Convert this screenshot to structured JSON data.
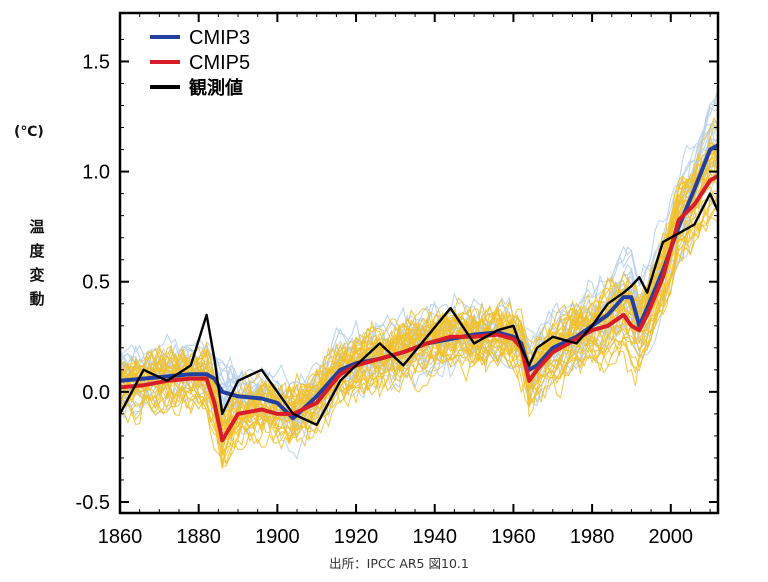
{
  "source_note": "出所：IPCC AR5 図10.1",
  "ylabel_unit": "(℃)",
  "ylabel_chars": [
    "温",
    "度",
    "変",
    "動"
  ],
  "colors": {
    "cmip3_mean": "#2340a0",
    "cmip3_members": "#b8d1ec",
    "cmip5_mean": "#d81d28",
    "cmip5_members": "#f2c12c",
    "observed": "#000000"
  },
  "chart_data": {
    "type": "line",
    "title": "",
    "xlabel": "",
    "ylabel": "温度変動",
    "xlim": [
      1860,
      2012
    ],
    "ylim": [
      -0.55,
      1.72
    ],
    "x_ticks": [
      "1860",
      "1880",
      "1900",
      "1920",
      "1940",
      "1960",
      "1980",
      "2000"
    ],
    "y_ticks": [
      "-0.5",
      "0.0",
      "0.5",
      "1.0",
      "1.5"
    ],
    "legend_position": "top-left",
    "legend": [
      "CMIP3",
      "CMIP5",
      "観測値"
    ],
    "x": [
      1860,
      1866,
      1872,
      1878,
      1882,
      1884,
      1886,
      1890,
      1896,
      1900,
      1904,
      1910,
      1916,
      1920,
      1926,
      1932,
      1938,
      1944,
      1950,
      1956,
      1960,
      1962,
      1964,
      1966,
      1970,
      1976,
      1980,
      1984,
      1988,
      1990,
      1992,
      1994,
      1998,
      2002,
      2006,
      2010,
      2012
    ],
    "series": [
      {
        "name": "CMIP3",
        "values": [
          0.05,
          0.06,
          0.07,
          0.08,
          0.08,
          0.06,
          0.0,
          -0.02,
          -0.03,
          -0.05,
          -0.12,
          -0.02,
          0.1,
          0.13,
          0.15,
          0.18,
          0.22,
          0.24,
          0.26,
          0.27,
          0.25,
          0.22,
          0.1,
          0.12,
          0.2,
          0.25,
          0.3,
          0.35,
          0.43,
          0.43,
          0.3,
          0.38,
          0.55,
          0.75,
          0.92,
          1.1,
          1.12
        ]
      },
      {
        "name": "CMIP5",
        "values": [
          0.02,
          0.03,
          0.05,
          0.06,
          0.06,
          -0.05,
          -0.22,
          -0.1,
          -0.08,
          -0.1,
          -0.1,
          -0.05,
          0.08,
          0.12,
          0.15,
          0.18,
          0.22,
          0.25,
          0.25,
          0.26,
          0.24,
          0.2,
          0.05,
          0.1,
          0.18,
          0.24,
          0.28,
          0.3,
          0.35,
          0.3,
          0.28,
          0.35,
          0.52,
          0.78,
          0.85,
          0.96,
          0.98
        ]
      },
      {
        "name": "観測値",
        "values": [
          -0.1,
          0.1,
          0.05,
          0.12,
          0.35,
          0.15,
          -0.1,
          0.05,
          0.1,
          0.0,
          -0.1,
          -0.15,
          0.05,
          0.12,
          0.22,
          0.12,
          0.25,
          0.38,
          0.22,
          0.28,
          0.3,
          0.2,
          0.12,
          0.2,
          0.25,
          0.22,
          0.3,
          0.4,
          0.45,
          0.48,
          0.52,
          0.45,
          0.68,
          0.72,
          0.76,
          0.9,
          0.82
        ]
      }
    ]
  }
}
